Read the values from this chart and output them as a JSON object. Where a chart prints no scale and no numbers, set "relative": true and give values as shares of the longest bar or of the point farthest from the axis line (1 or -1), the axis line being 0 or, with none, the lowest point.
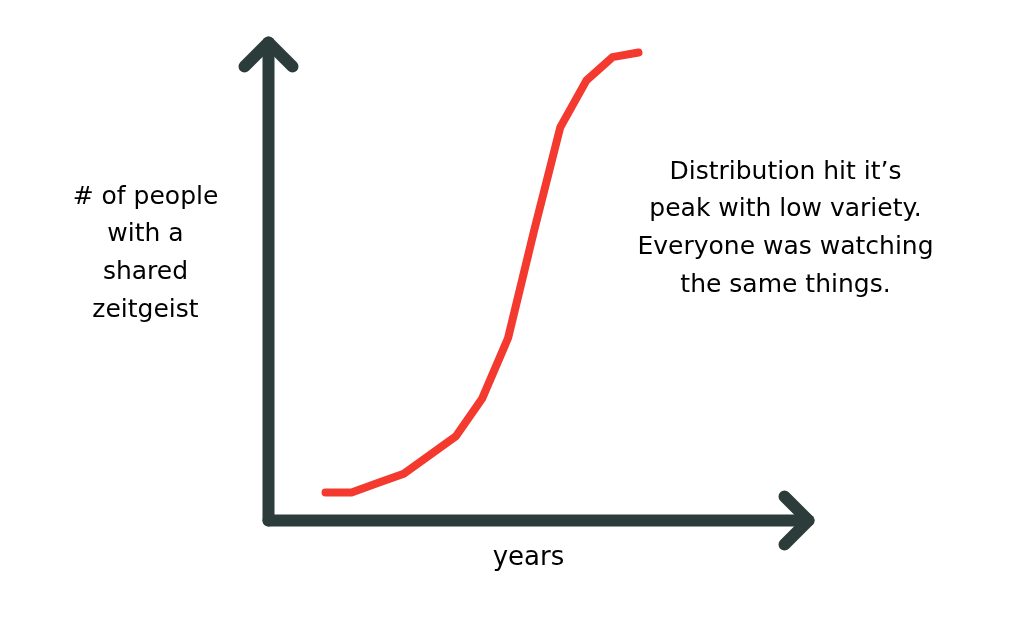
{
  "chart_data": {
    "type": "line",
    "relative": true,
    "xlabel": "years",
    "ylabel": "# of people with a shared zeitgeist",
    "annotations": [
      "Distribution hit it’s peak with low variety. Everyone was watching the same things."
    ],
    "categories": [
      null,
      null,
      null,
      null,
      null,
      null,
      null,
      null,
      null,
      null,
      null,
      null,
      null
    ],
    "series": [
      {
        "color": "#f4392f",
        "values": [
          0.06,
          0.06,
          0.08,
          0.1,
          0.14,
          0.18,
          0.26,
          0.39,
          0.62,
          0.84,
          0.94,
          0.99,
          1
        ]
      }
    ],
    "grid": false,
    "marker": "none",
    "line_style": "solid"
  }
}
